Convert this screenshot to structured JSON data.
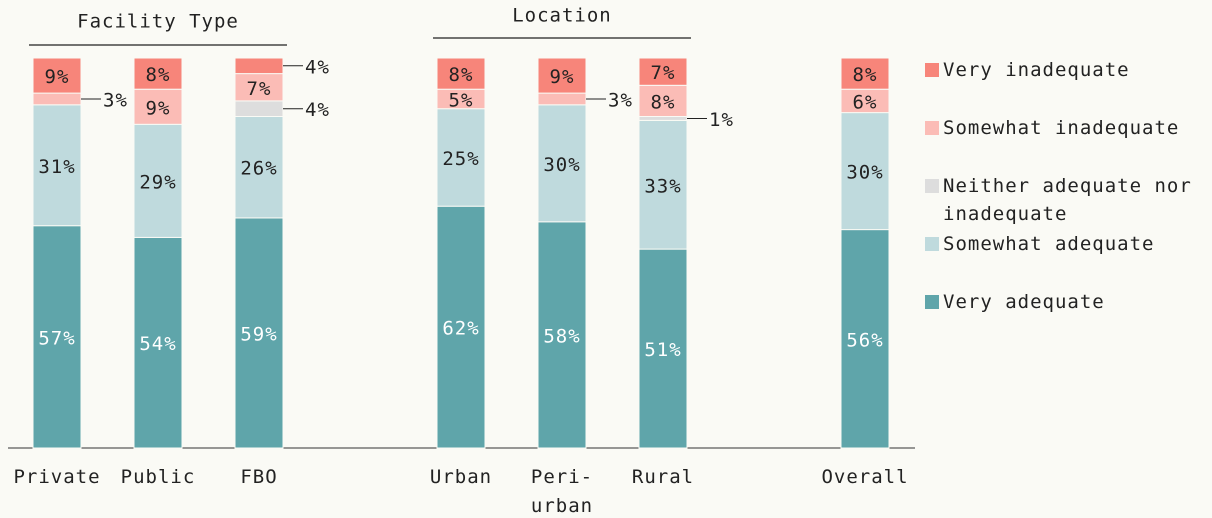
{
  "chart_data": {
    "type": "stacked-bar",
    "categories": [
      "Private",
      "Public",
      "FBO",
      null,
      "Urban",
      "Peri-urban",
      "Rural",
      null,
      "Overall"
    ],
    "groups": [
      {
        "label": "Facility Type",
        "categories": [
          "Private",
          "Public",
          "FBO"
        ]
      },
      {
        "label": "Location",
        "categories": [
          "Urban",
          "Peri-urban",
          "Rural"
        ]
      }
    ],
    "ylim": [
      0,
      100
    ],
    "series": [
      {
        "name": "Very adequate",
        "color": "#5fa5aa",
        "label_color": "#ffffff",
        "values": [
          57,
          54,
          59,
          null,
          62,
          58,
          51,
          null,
          56
        ],
        "value_labels": [
          "57%",
          "54%",
          "59%",
          null,
          "62%",
          "58%",
          "51%",
          null,
          "56%"
        ]
      },
      {
        "name": "Somewhat adequate",
        "color": "#bfdadd",
        "label_color": "#222222",
        "values": [
          31,
          29,
          26,
          null,
          25,
          30,
          33,
          null,
          30
        ],
        "value_labels": [
          "31%",
          "29%",
          "26%",
          null,
          "25%",
          "30%",
          "33%",
          null,
          "30%"
        ]
      },
      {
        "name": "Neither adequate nor inadequate",
        "color": "#dddddd",
        "label_color": "#222222",
        "values": [
          0,
          0,
          4,
          null,
          0,
          0,
          1,
          null,
          0
        ],
        "value_labels": [
          null,
          null,
          "4%",
          null,
          null,
          null,
          "1%",
          null,
          null
        ]
      },
      {
        "name": "Somewhat inadequate",
        "color": "#fbbcb6",
        "label_color": "#222222",
        "values": [
          3,
          9,
          7,
          null,
          5,
          3,
          8,
          null,
          6
        ],
        "value_labels": [
          "3%",
          "9%",
          "7%",
          null,
          "5%",
          "3%",
          "8%",
          null,
          "6%"
        ]
      },
      {
        "name": "Very inadequate",
        "color": "#f7857a",
        "label_color": "#222222",
        "values": [
          9,
          8,
          4,
          null,
          8,
          9,
          7,
          null,
          8
        ],
        "value_labels": [
          "9%",
          "8%",
          "4%",
          null,
          "8%",
          "9%",
          "7%",
          null,
          "8%"
        ]
      }
    ]
  }
}
